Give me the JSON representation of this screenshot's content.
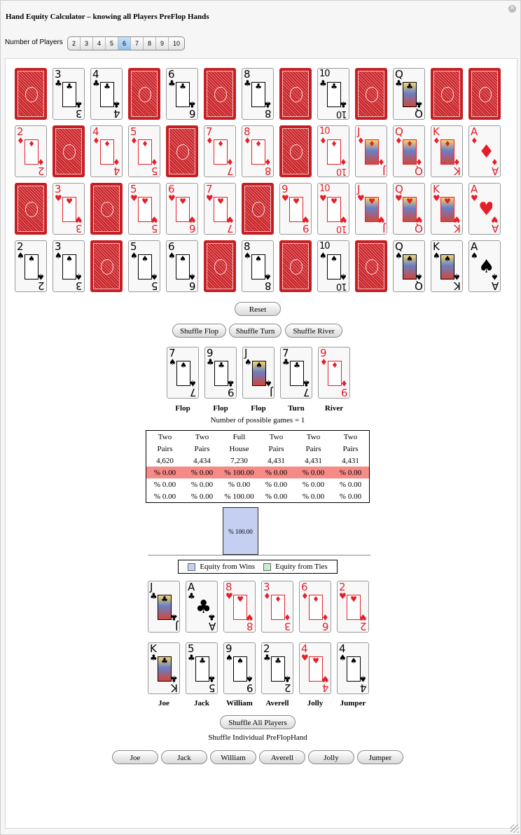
{
  "window": {
    "title": "Hand Equity Calculator – knowing all Players PreFlop Hands"
  },
  "players_control": {
    "label": "Number of Players",
    "options": [
      "2",
      "3",
      "4",
      "5",
      "6",
      "7",
      "8",
      "9",
      "10"
    ],
    "selected": "6"
  },
  "deck_grid": {
    "rows": [
      [
        {
          "b": 1
        },
        {
          "r": "3",
          "s": "♣"
        },
        {
          "r": "4",
          "s": "♣"
        },
        {
          "b": 1
        },
        {
          "r": "6",
          "s": "♣"
        },
        {
          "b": 1
        },
        {
          "r": "8",
          "s": "♣"
        },
        {
          "b": 1
        },
        {
          "r": "10",
          "s": "♣"
        },
        {
          "b": 1
        },
        {
          "r": "Q",
          "s": "♣"
        },
        {
          "b": 1
        },
        {
          "b": 1
        }
      ],
      [
        {
          "r": "2",
          "s": "♦"
        },
        {
          "b": 1
        },
        {
          "r": "4",
          "s": "♦"
        },
        {
          "r": "5",
          "s": "♦"
        },
        {
          "b": 1
        },
        {
          "r": "7",
          "s": "♦"
        },
        {
          "r": "8",
          "s": "♦"
        },
        {
          "b": 1
        },
        {
          "r": "10",
          "s": "♦"
        },
        {
          "r": "J",
          "s": "♦"
        },
        {
          "r": "Q",
          "s": "♦"
        },
        {
          "r": "K",
          "s": "♦"
        },
        {
          "r": "A",
          "s": "♦"
        }
      ],
      [
        {
          "b": 1
        },
        {
          "r": "3",
          "s": "♥"
        },
        {
          "b": 1
        },
        {
          "r": "5",
          "s": "♥"
        },
        {
          "r": "6",
          "s": "♥"
        },
        {
          "r": "7",
          "s": "♥"
        },
        {
          "b": 1
        },
        {
          "r": "9",
          "s": "♥"
        },
        {
          "r": "10",
          "s": "♥"
        },
        {
          "r": "J",
          "s": "♥"
        },
        {
          "r": "Q",
          "s": "♥"
        },
        {
          "r": "K",
          "s": "♥"
        },
        {
          "r": "A",
          "s": "♥"
        }
      ],
      [
        {
          "r": "2",
          "s": "♠"
        },
        {
          "r": "3",
          "s": "♠"
        },
        {
          "b": 1
        },
        {
          "r": "5",
          "s": "♠"
        },
        {
          "r": "6",
          "s": "♠"
        },
        {
          "b": 1
        },
        {
          "r": "8",
          "s": "♠"
        },
        {
          "b": 1
        },
        {
          "r": "10",
          "s": "♠"
        },
        {
          "b": 1
        },
        {
          "r": "Q",
          "s": "♠"
        },
        {
          "r": "K",
          "s": "♠"
        },
        {
          "r": "A",
          "s": "♠"
        }
      ]
    ]
  },
  "buttons": {
    "reset": "Reset",
    "shuffle_flop": "Shuffle Flop",
    "shuffle_turn": "Shuffle Turn",
    "shuffle_river": "Shuffle River",
    "shuffle_all": "Shuffle All Players"
  },
  "board": {
    "cards": [
      {
        "r": "7",
        "s": "♠"
      },
      {
        "r": "9",
        "s": "♣"
      },
      {
        "r": "J",
        "s": "♠"
      },
      {
        "r": "7",
        "s": "♣"
      },
      {
        "r": "9",
        "s": "♦"
      }
    ],
    "labels": [
      "Flop",
      "Flop",
      "Flop",
      "Turn",
      "River"
    ]
  },
  "possible_games_text": "Number of possible games = 1",
  "results_table": {
    "hand_line1": [
      "Two",
      "Two",
      "Full",
      "Two",
      "Two",
      "Two"
    ],
    "hand_line2": [
      "Pairs",
      "Pairs",
      "House",
      "Pairs",
      "Pairs",
      "Pairs"
    ],
    "scores": [
      "4,620",
      "4,434",
      "7,230",
      "4,431",
      "4,431",
      "4,431"
    ],
    "row_highlight": [
      "% 0.00",
      "% 0.00",
      "% 100.00",
      "% 0.00",
      "% 0.00",
      "% 0.00"
    ],
    "row_ties": [
      "% 0.00",
      "% 0.00",
      "% 0.00",
      "% 0.00",
      "% 0.00",
      "% 0.00"
    ],
    "row_total": [
      "% 0.00",
      "% 0.00",
      "% 100.00",
      "% 0.00",
      "% 0.00",
      "% 0.00"
    ]
  },
  "chart_data": {
    "type": "bar",
    "categories": [
      "Joe",
      "Jack",
      "William",
      "Averell",
      "Jolly",
      "Jumper"
    ],
    "series": [
      {
        "name": "Equity from Wins",
        "values": [
          0,
          0,
          100,
          0,
          0,
          0
        ]
      },
      {
        "name": "Equity from Ties",
        "values": [
          0,
          0,
          0,
          0,
          0,
          0
        ]
      }
    ],
    "data_label": "% 100.00",
    "colors": {
      "wins": "#c5cff1",
      "ties": "#c7ecd4"
    },
    "legend": "bottom"
  },
  "players": [
    {
      "name": "Joe",
      "c1": {
        "r": "J",
        "s": "♣"
      },
      "c2": {
        "r": "K",
        "s": "♣"
      }
    },
    {
      "name": "Jack",
      "c1": {
        "r": "A",
        "s": "♣"
      },
      "c2": {
        "r": "5",
        "s": "♣"
      }
    },
    {
      "name": "William",
      "c1": {
        "r": "8",
        "s": "♥"
      },
      "c2": {
        "r": "9",
        "s": "♠"
      }
    },
    {
      "name": "Averell",
      "c1": {
        "r": "3",
        "s": "♦"
      },
      "c2": {
        "r": "2",
        "s": "♣"
      }
    },
    {
      "name": "Jolly",
      "c1": {
        "r": "6",
        "s": "♦"
      },
      "c2": {
        "r": "4",
        "s": "♥"
      }
    },
    {
      "name": "Jumper",
      "c1": {
        "r": "2",
        "s": "♥"
      },
      "c2": {
        "r": "4",
        "s": "♠"
      }
    }
  ],
  "individual_label": "Shuffle Individual PreFlopHand",
  "individual_buttons": [
    "Joe",
    "Jack",
    "William",
    "Averell",
    "Jolly",
    "Jumper"
  ]
}
